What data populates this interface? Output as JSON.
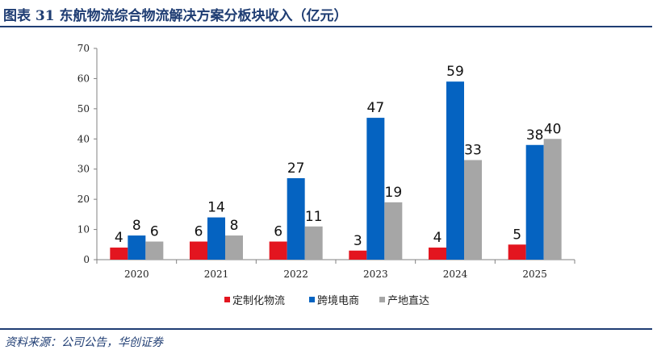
{
  "header": {
    "title": "图表 31  东航物流综合物流解决方案分板块收入（亿元）"
  },
  "source": "资料来源：公司公告，华创证券",
  "colors": {
    "accent": "#1f3d73"
  },
  "chart_data": {
    "type": "bar",
    "title": "",
    "xlabel": "",
    "ylabel": "",
    "categories": [
      "2020",
      "2021",
      "2022",
      "2023",
      "2024",
      "2025"
    ],
    "ylim": [
      0,
      70
    ],
    "yticks": [
      0,
      10,
      20,
      30,
      40,
      50,
      60,
      70
    ],
    "grid": false,
    "legend_position": "bottom",
    "series": [
      {
        "name": "定制化物流",
        "color": "#e3151f",
        "values": [
          4,
          6,
          6,
          3,
          4,
          5
        ]
      },
      {
        "name": "跨境电商",
        "color": "#0563c1",
        "values": [
          8,
          14,
          27,
          47,
          59,
          38
        ]
      },
      {
        "name": "产地直达",
        "color": "#a6a6a6",
        "values": [
          6,
          8,
          11,
          19,
          33,
          40
        ]
      }
    ]
  }
}
